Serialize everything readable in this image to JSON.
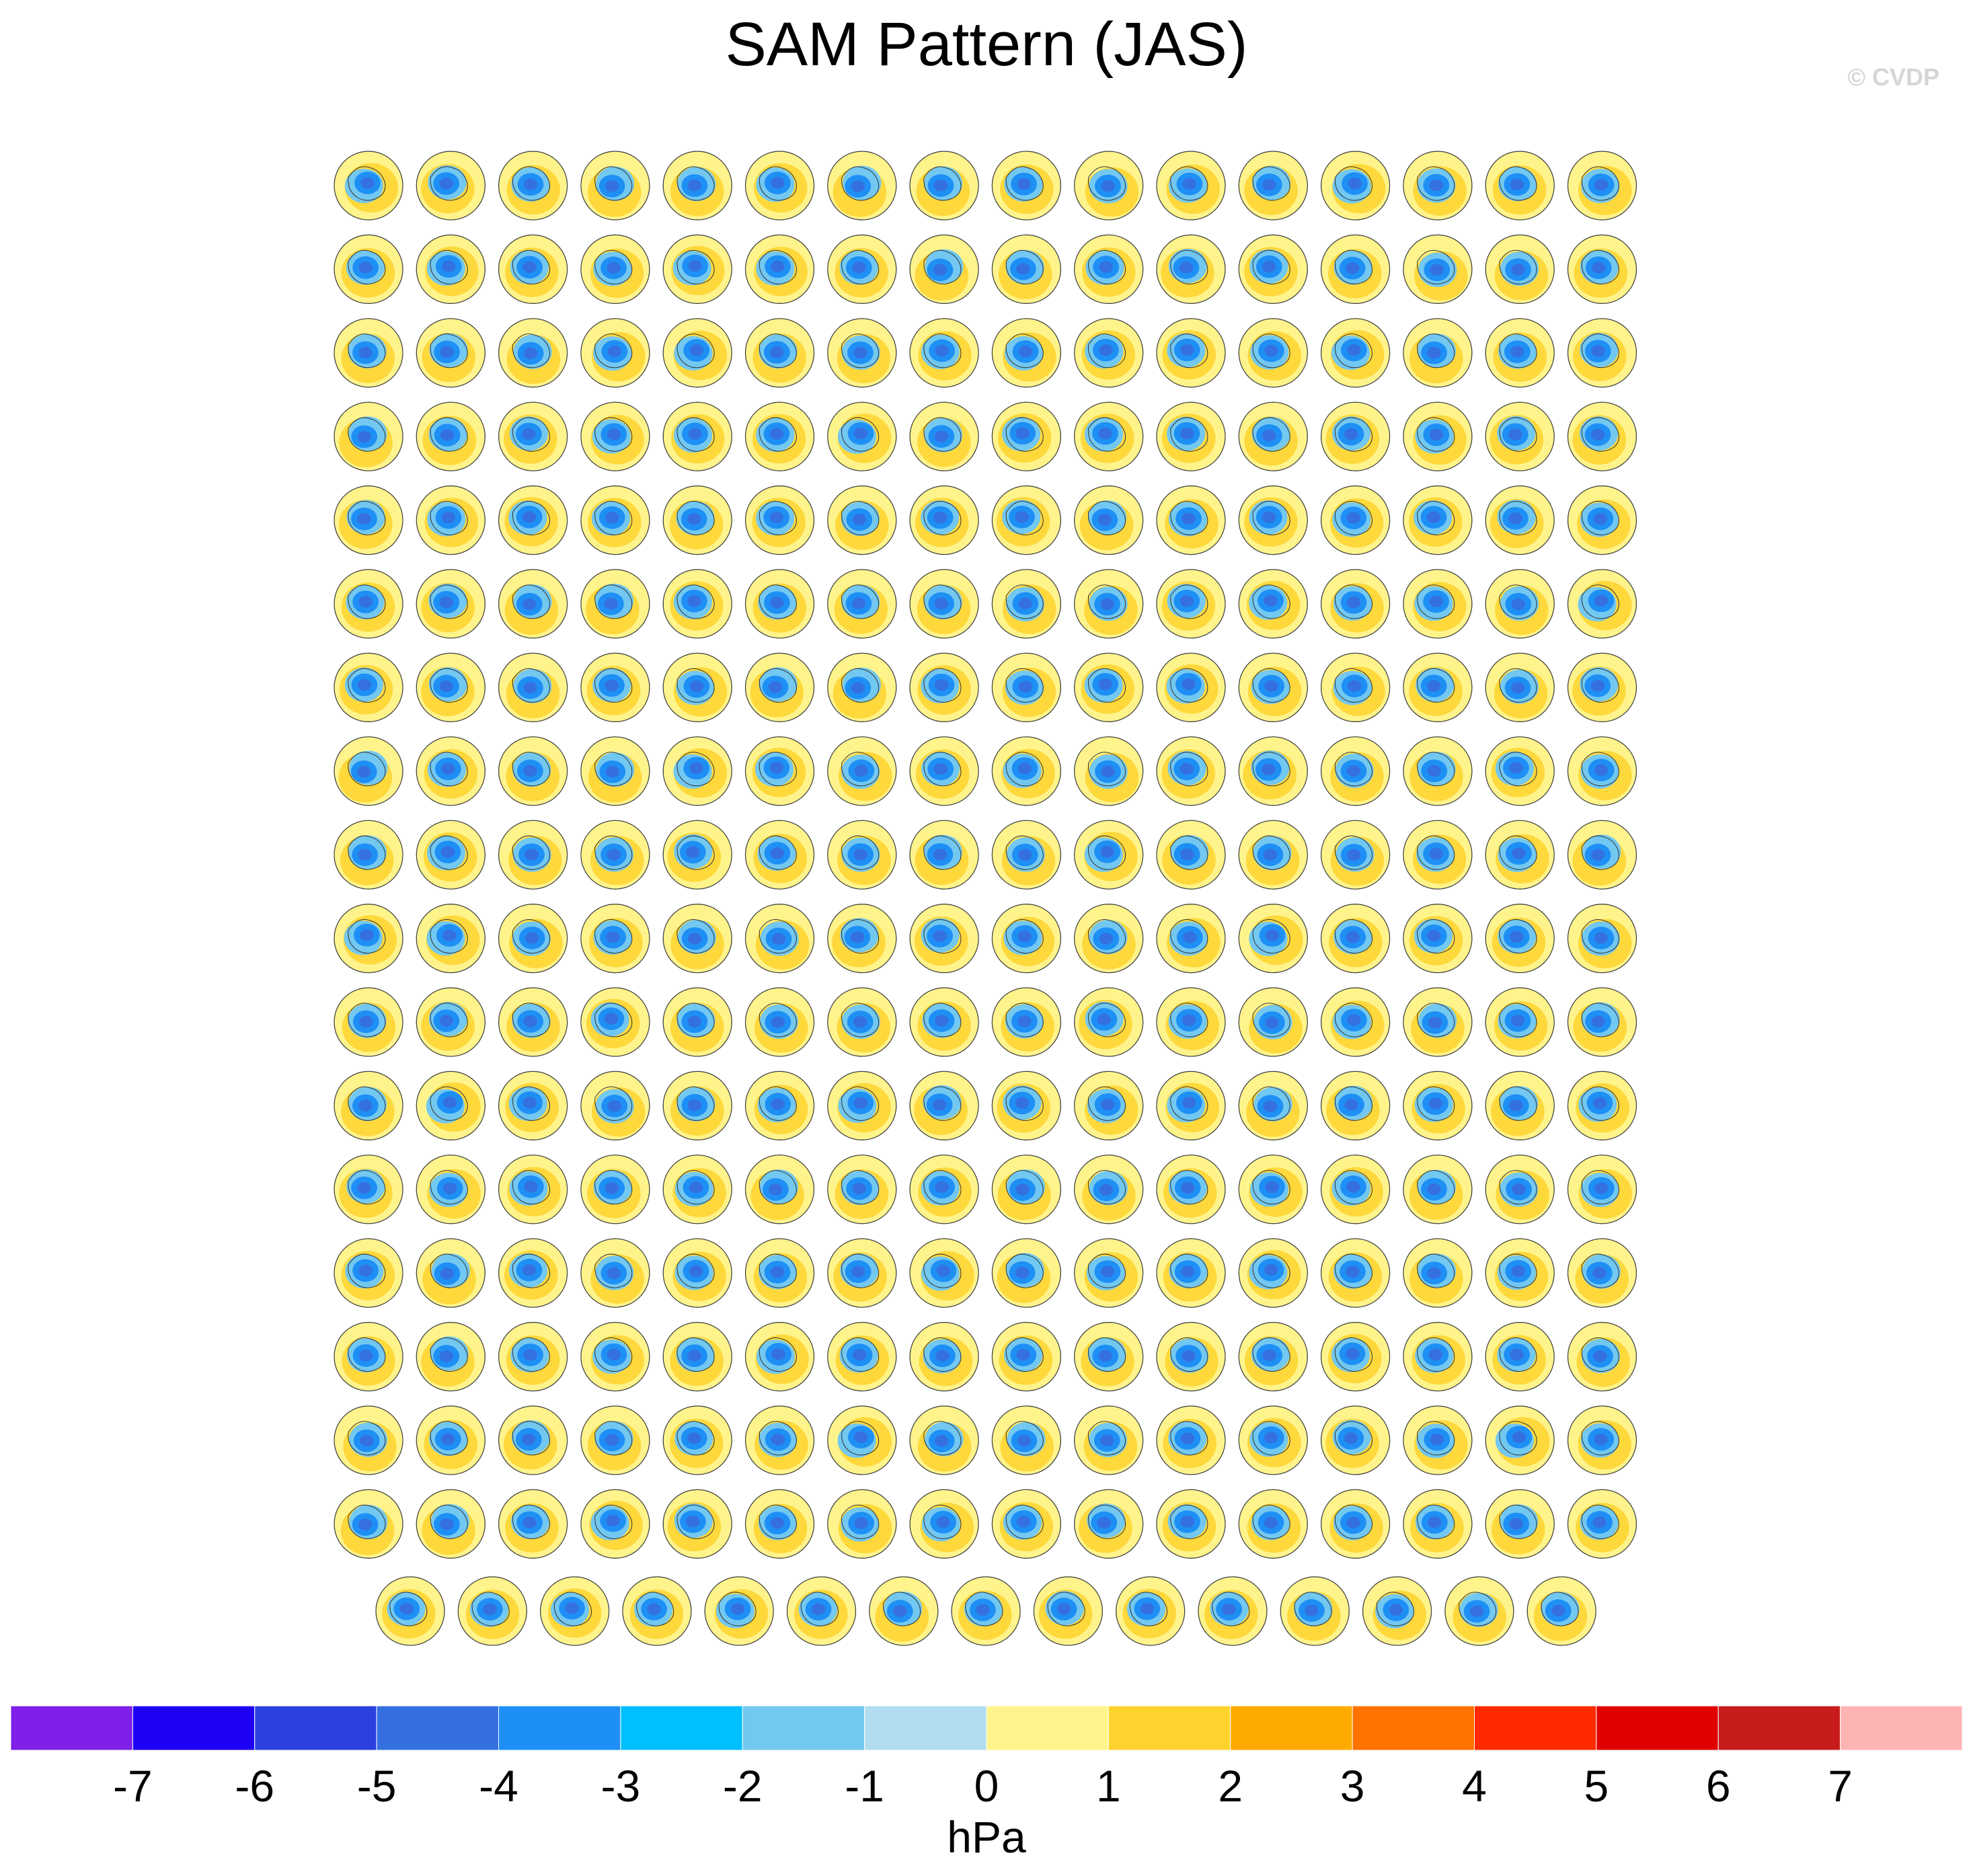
{
  "title": "SAM Pattern (JAS)",
  "watermark": "© CVDP",
  "chart_data": {
    "type": "heatmap",
    "title": "SAM Pattern (JAS)",
    "description_layout": "grid of polar stereographic Southern Hemisphere sea level pressure pattern maps, one per model/ensemble member",
    "grid": {
      "rows_full": 17,
      "cols_full": 16,
      "last_row_count": 15,
      "total_panels": 287
    },
    "colorbar": {
      "label": "hPa",
      "tick_labels": [
        "-7",
        "-6",
        "-5",
        "-4",
        "-3",
        "-2",
        "-1",
        "0",
        "1",
        "2",
        "3",
        "4",
        "5",
        "6",
        "7"
      ],
      "colors": [
        "#7f1fe8",
        "#1e00f5",
        "#2a41e0",
        "#3570e0",
        "#1e8ff5",
        "#00bfff",
        "#72c8f0",
        "#b2ddf0",
        "#fff48c",
        "#ffd22e",
        "#ffaa00",
        "#ff7300",
        "#ff2a00",
        "#e00000",
        "#c81c1c",
        "#ffb4b4"
      ]
    },
    "dominant_pattern": "negative SLP anomaly over Antarctica (blue, about -3 to -5 hPa) surrounded by positive mid-latitude ring (yellow/orange, about +1 to +3 hPa)"
  }
}
